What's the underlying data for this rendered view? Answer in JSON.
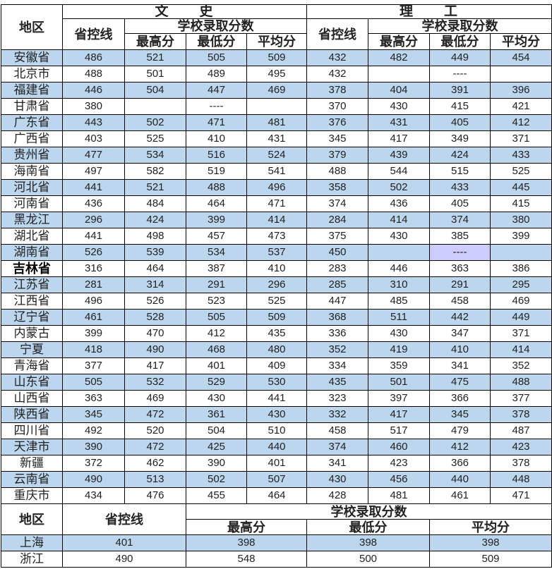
{
  "header": {
    "region": "地区",
    "arts": "文　　史",
    "science": "理　　工",
    "control_line": "省控线",
    "school_scores": "学校录取分数",
    "max": "最高分",
    "min": "最低分",
    "avg": "平均分"
  },
  "rows": [
    {
      "region": "安徽省",
      "a": [
        "486",
        "521",
        "505",
        "509"
      ],
      "s": [
        "432",
        "482",
        "449",
        "454"
      ]
    },
    {
      "region": "北京市",
      "a": [
        "488",
        "501",
        "489",
        "495"
      ],
      "s": [
        "432",
        "",
        "----",
        ""
      ]
    },
    {
      "region": "福建省",
      "a": [
        "446",
        "504",
        "447",
        "469"
      ],
      "s": [
        "378",
        "404",
        "391",
        "396"
      ]
    },
    {
      "region": "甘肃省",
      "a": [
        "380",
        "",
        "----",
        ""
      ],
      "s": [
        "370",
        "430",
        "415",
        "421"
      ]
    },
    {
      "region": "广东省",
      "a": [
        "443",
        "502",
        "471",
        "481"
      ],
      "s": [
        "376",
        "431",
        "405",
        "412"
      ]
    },
    {
      "region": "广西省",
      "a": [
        "403",
        "525",
        "410",
        "431"
      ],
      "s": [
        "345",
        "417",
        "349",
        "371"
      ]
    },
    {
      "region": "贵州省",
      "a": [
        "477",
        "534",
        "516",
        "524"
      ],
      "s": [
        "379",
        "439",
        "424",
        "433"
      ]
    },
    {
      "region": "海南省",
      "a": [
        "497",
        "582",
        "519",
        "541"
      ],
      "s": [
        "488",
        "544",
        "515",
        "525"
      ]
    },
    {
      "region": "河北省",
      "a": [
        "441",
        "521",
        "488",
        "496"
      ],
      "s": [
        "358",
        "502",
        "433",
        "445"
      ]
    },
    {
      "region": "河南省",
      "a": [
        "436",
        "484",
        "464",
        "471"
      ],
      "s": [
        "374",
        "436",
        "405",
        "415"
      ]
    },
    {
      "region": "黑龙江",
      "a": [
        "296",
        "424",
        "399",
        "414"
      ],
      "s": [
        "284",
        "414",
        "374",
        "380"
      ]
    },
    {
      "region": "湖北省",
      "a": [
        "441",
        "498",
        "457",
        "473"
      ],
      "s": [
        "375",
        "430",
        "385",
        "399"
      ]
    },
    {
      "region": "湖南省",
      "a": [
        "526",
        "539",
        "534",
        "537"
      ],
      "s": [
        "450",
        "",
        "----",
        ""
      ],
      "highlight_cell": "s.2"
    },
    {
      "region": "吉林省",
      "a": [
        "316",
        "464",
        "387",
        "410"
      ],
      "s": [
        "283",
        "446",
        "363",
        "386"
      ],
      "bold_region": true
    },
    {
      "region": "江苏省",
      "a": [
        "281",
        "314",
        "291",
        "296"
      ],
      "s": [
        "285",
        "310",
        "291",
        "295"
      ]
    },
    {
      "region": "江西省",
      "a": [
        "496",
        "526",
        "523",
        "525"
      ],
      "s": [
        "447",
        "485",
        "458",
        "469"
      ]
    },
    {
      "region": "辽宁省",
      "a": [
        "461",
        "528",
        "505",
        "509"
      ],
      "s": [
        "368",
        "511",
        "442",
        "449"
      ]
    },
    {
      "region": "内蒙古",
      "a": [
        "399",
        "470",
        "412",
        "435"
      ],
      "s": [
        "336",
        "430",
        "347",
        "371"
      ]
    },
    {
      "region": "宁夏",
      "a": [
        "418",
        "490",
        "468",
        "480"
      ],
      "s": [
        "352",
        "419",
        "410",
        "414"
      ]
    },
    {
      "region": "青海省",
      "a": [
        "377",
        "417",
        "401",
        "409"
      ],
      "s": [
        "334",
        "359",
        "341",
        "352"
      ]
    },
    {
      "region": "山东省",
      "a": [
        "505",
        "532",
        "529",
        "530"
      ],
      "s": [
        "435",
        "501",
        "475",
        "488"
      ]
    },
    {
      "region": "山西省",
      "a": [
        "363",
        "469",
        "430",
        "441"
      ],
      "s": [
        "323",
        "397",
        "366",
        "377"
      ]
    },
    {
      "region": "陕西省",
      "a": [
        "345",
        "472",
        "361",
        "430"
      ],
      "s": [
        "332",
        "417",
        "345",
        "378"
      ]
    },
    {
      "region": "四川省",
      "a": [
        "492",
        "520",
        "504",
        "510"
      ],
      "s": [
        "458",
        "517",
        "479",
        "487"
      ]
    },
    {
      "region": "天津市",
      "a": [
        "390",
        "472",
        "425",
        "440"
      ],
      "s": [
        "374",
        "460",
        "412",
        "423"
      ]
    },
    {
      "region": "新疆",
      "a": [
        "372",
        "462",
        "390",
        "401"
      ],
      "s": [
        "341",
        "423",
        "366",
        "378"
      ]
    },
    {
      "region": "云南省",
      "a": [
        "490",
        "513",
        "502",
        "507"
      ],
      "s": [
        "430",
        "456",
        "440",
        "448"
      ]
    },
    {
      "region": "重庆市",
      "a": [
        "434",
        "476",
        "455",
        "464"
      ],
      "s": [
        "428",
        "481",
        "461",
        "471"
      ]
    }
  ],
  "bottom": {
    "header": {
      "region": "地区",
      "control_line": "省控线",
      "school_scores": "学校录取分数",
      "max": "最高分",
      "min": "最低分",
      "avg": "平均分"
    },
    "rows": [
      {
        "region": "上海",
        "v": [
          "401",
          "398",
          "398",
          "398"
        ]
      },
      {
        "region": "浙江",
        "v": [
          "490",
          "548",
          "500",
          "509"
        ]
      }
    ]
  },
  "colors": {
    "row_highlight": "#bcd6ee",
    "cell_highlight": "#ccccff",
    "border": "#000000"
  }
}
